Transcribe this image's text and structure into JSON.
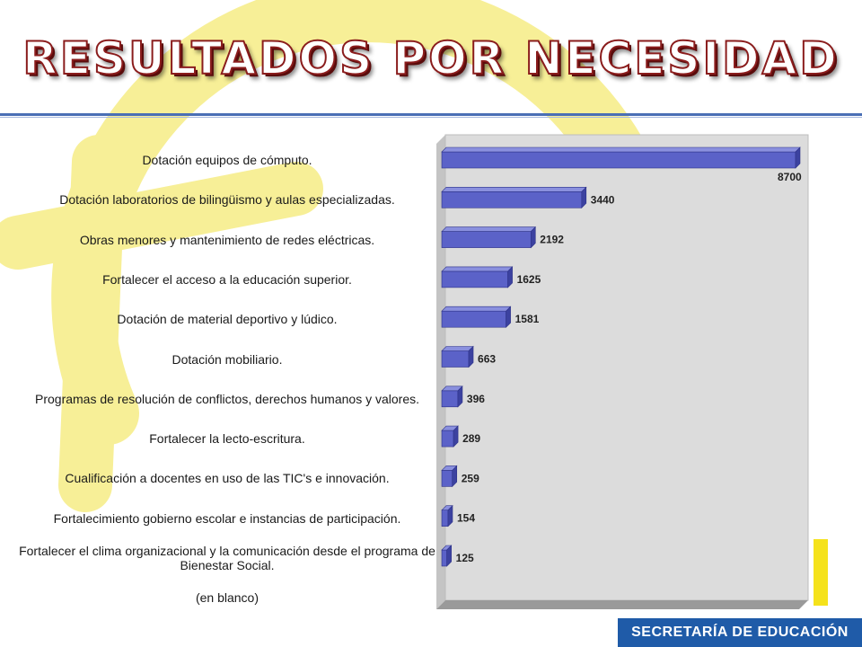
{
  "title": "RESULTADOS POR NECESIDAD",
  "footer": {
    "label": "SECRETARÍA DE EDUCACIÓN"
  },
  "colors": {
    "bar_front": "#5b62c8",
    "bar_top": "#8a90de",
    "bar_side": "#3c42a0",
    "plot_back": "#dcdcdc",
    "plot_floor": "#9a9a9a",
    "logo_yellow": "#f7ef97",
    "title_stroke": "#8a1c1c",
    "footer_bg": "#1f5ba8"
  },
  "chart_data": {
    "type": "bar",
    "orientation": "horizontal",
    "categories": [
      "Dotación equipos de cómputo.",
      "Dotación laboratorios de bilingüismo y aulas especializadas.",
      "Obras menores y mantenimiento de redes eléctricas.",
      "Fortalecer el acceso a la educación superior.",
      "Dotación de material deportivo y lúdico.",
      "Dotación mobiliario.",
      "Programas de resolución de conflictos, derechos humanos y valores.",
      "Fortalecer la lecto-escritura.",
      "Cualificación a docentes en uso de las TIC's e innovación.",
      "Fortalecimiento gobierno escolar e instancias de participación.",
      "Fortalecer el clima organizacional y la comunicación desde el programa de Bienestar Social.",
      "(en blanco)"
    ],
    "values": [
      8700,
      3440,
      2192,
      1625,
      1581,
      663,
      396,
      289,
      259,
      154,
      125,
      null
    ],
    "data_labels": [
      "8700",
      "3440",
      "2192",
      "1625",
      "1581",
      "663",
      "396",
      "289",
      "259",
      "154",
      "125",
      ""
    ],
    "xlim": [
      0,
      8700
    ],
    "bar_style": "3d",
    "legend": "none",
    "grid": false
  }
}
